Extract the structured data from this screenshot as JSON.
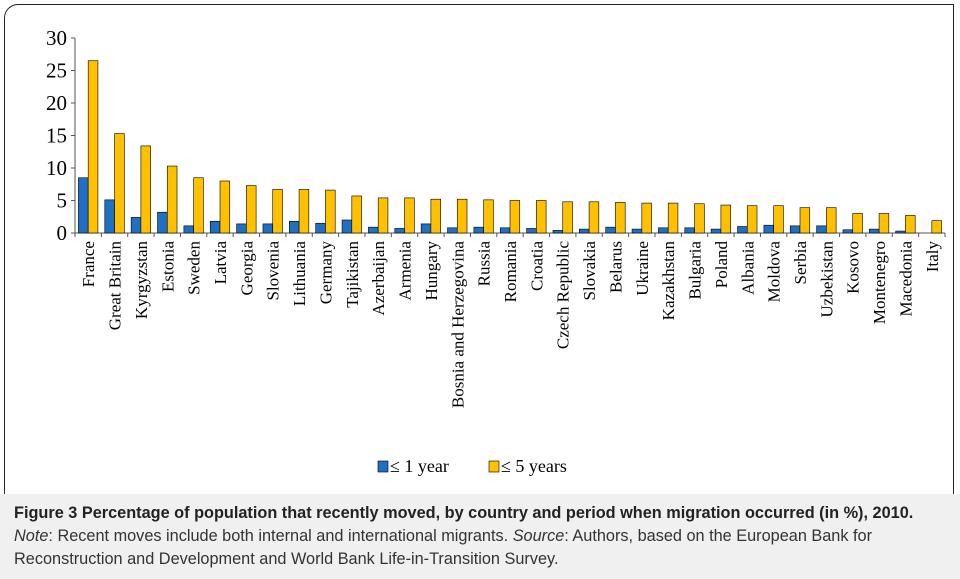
{
  "chart_data": {
    "type": "bar",
    "categories": [
      "France",
      "Great Britain",
      "Kyrgyzstan",
      "Estonia",
      "Sweden",
      "Latvia",
      "Georgia",
      "Slovenia",
      "Lithuania",
      "Germany",
      "Tajikistan",
      "Azerbaijan",
      "Armenia",
      "Hungary",
      "Bosnia and Herzegovina",
      "Russia",
      "Romania",
      "Croatia",
      "Czech Republic",
      "Slovakia",
      "Belarus",
      "Ukraine",
      "Kazakhstan",
      "Bulgaria",
      "Poland",
      "Albania",
      "Moldova",
      "Serbia",
      "Uzbekistan",
      "Kosovo",
      "Montenegro",
      "Macedonia",
      "Italy"
    ],
    "series": [
      {
        "name": "≤ 1 year",
        "color": "#1f6fc5",
        "values": [
          8.5,
          5.1,
          2.4,
          3.2,
          1.1,
          1.8,
          1.4,
          1.4,
          1.8,
          1.5,
          2.0,
          0.9,
          0.7,
          1.4,
          0.8,
          0.9,
          0.8,
          0.7,
          0.4,
          0.6,
          0.9,
          0.6,
          0.8,
          0.8,
          0.6,
          1.0,
          1.2,
          1.1,
          1.1,
          0.5,
          0.6,
          0.3,
          0.0
        ]
      },
      {
        "name": "≤ 5 years",
        "color": "#ffc000",
        "values": [
          26.5,
          15.3,
          13.4,
          10.3,
          8.5,
          8.0,
          7.3,
          6.7,
          6.7,
          6.6,
          5.7,
          5.4,
          5.4,
          5.2,
          5.2,
          5.1,
          5.0,
          5.0,
          4.8,
          4.8,
          4.7,
          4.6,
          4.6,
          4.5,
          4.3,
          4.2,
          4.2,
          3.9,
          3.9,
          3.0,
          3.0,
          2.7,
          1.9
        ]
      }
    ],
    "ylim": [
      0,
      30
    ],
    "yticks": [
      0,
      5,
      10,
      15,
      20,
      25,
      30
    ],
    "legend_position": "bottom-center",
    "grid": false
  },
  "caption": {
    "label": "Figure 3",
    "title": "Percentage of population that recently moved, by country and period when migration occurred (in %), 2010.",
    "note_label": "Note",
    "note_text": ": Recent moves include both internal and international migrants. ",
    "source_label": "Source",
    "source_text": ": Authors, based on the European Bank for Reconstruction and Development and World Bank Life-in-Transition Survey."
  }
}
